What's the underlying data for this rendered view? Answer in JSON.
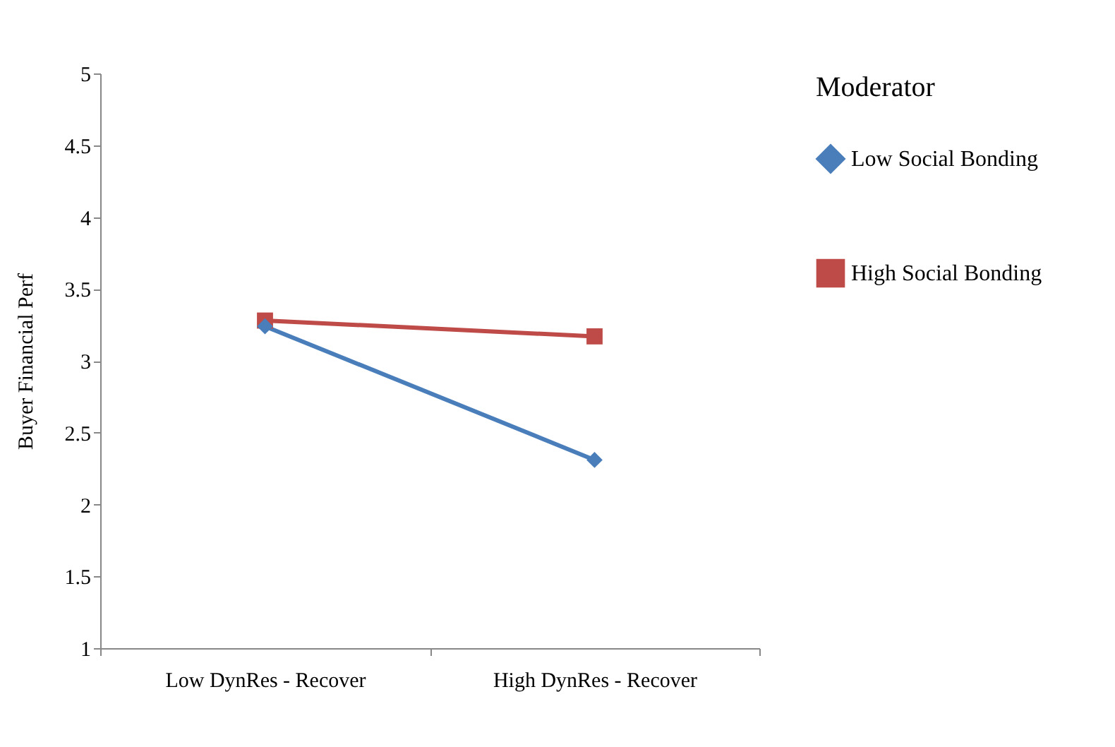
{
  "chart_data": {
    "type": "line",
    "ylabel": "Buyer Financial Perf",
    "legend_title": "Moderator",
    "legend": "right",
    "categories": [
      "Low DynRes - Recover",
      "High DynRes - Recover"
    ],
    "series": [
      {
        "name": "Low Social Bonding",
        "color": "#4a7ebb",
        "marker": "diamond",
        "values": [
          3.24,
          2.31
        ]
      },
      {
        "name": "High Social Bonding",
        "color": "#be4b48",
        "marker": "square",
        "values": [
          3.28,
          3.17
        ]
      }
    ],
    "ylim": [
      1,
      5
    ],
    "yticks": [
      1,
      1.5,
      2,
      2.5,
      3,
      3.5,
      4,
      4.5,
      5
    ],
    "grid": false
  }
}
